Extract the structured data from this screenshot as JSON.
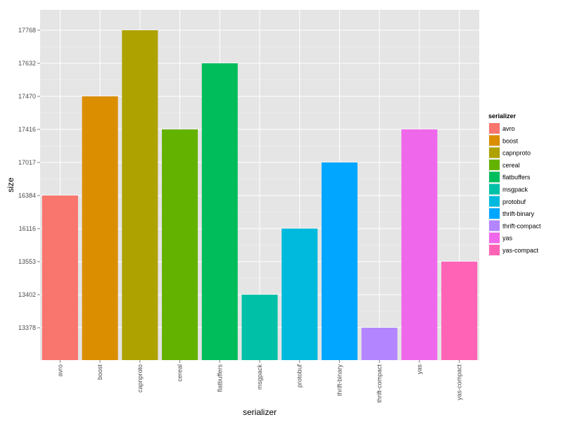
{
  "chart_data": {
    "type": "bar",
    "xlabel": "serializer",
    "ylabel": "size",
    "categories": [
      "avro",
      "boost",
      "capnproto",
      "cereal",
      "flatbuffers",
      "msgpack",
      "protobuf",
      "thrift-binary",
      "thrift-compact",
      "yas",
      "yas-compact"
    ],
    "values": [
      "16384",
      "17470",
      "17768",
      "17416",
      "17632",
      "13402",
      "16116",
      "17017",
      "13378",
      "17416",
      "13553"
    ],
    "y_ticks": [
      "13378",
      "13402",
      "13553",
      "16116",
      "16384",
      "17017",
      "17416",
      "17470",
      "17632",
      "17768"
    ],
    "y_axis_note": "y axis is discrete: each distinct size value occupies one evenly spaced level, sorted ascending",
    "colors": [
      "#F8766D",
      "#DB8E00",
      "#AEA200",
      "#64B200",
      "#00BD5C",
      "#00C1A7",
      "#00BADE",
      "#00A6FF",
      "#B385FF",
      "#EF67EB",
      "#FF63B6"
    ],
    "panel_background": "#E5E5E5",
    "grid": true,
    "legend": {
      "title": "serializer",
      "position": "right",
      "items": [
        "avro",
        "boost",
        "capnproto",
        "cereal",
        "flatbuffers",
        "msgpack",
        "protobuf",
        "thrift-binary",
        "thrift-compact",
        "yas",
        "yas-compact"
      ]
    }
  }
}
